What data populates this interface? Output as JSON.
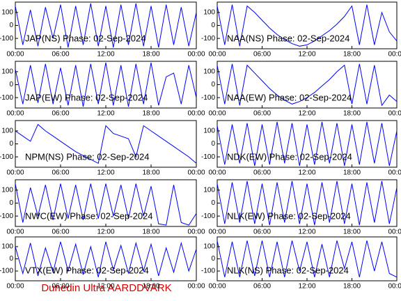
{
  "footer": "Dunedin Ultra AARDDVARK",
  "chart_data": [
    {
      "type": "line",
      "title": "JAP(NS) Phase: 02-Sep-2024",
      "color": "#0000ff",
      "x": [
        0,
        1,
        2,
        3,
        4,
        5,
        6,
        7,
        8,
        9,
        10,
        11,
        12,
        13,
        14,
        15,
        16,
        17,
        18,
        19,
        20,
        21,
        22,
        23,
        24
      ],
      "values": [
        150,
        -150,
        120,
        -160,
        140,
        -100,
        160,
        -170,
        150,
        -150,
        170,
        -160,
        150,
        -170,
        160,
        -150,
        170,
        -160,
        150,
        -170,
        160,
        -150,
        140,
        -160,
        100
      ],
      "xlim": [
        0,
        24
      ],
      "ylim": [
        -180,
        180
      ],
      "yticks": [
        100,
        0,
        -100
      ],
      "xticks": [
        {
          "value": 0,
          "label": "00:00"
        },
        {
          "value": 6,
          "label": "06:00"
        },
        {
          "value": 12,
          "label": "12:00"
        },
        {
          "value": 18,
          "label": "18:00"
        },
        {
          "value": 24,
          "label": "00:00"
        }
      ]
    },
    {
      "type": "line",
      "title": "NAA(NS) Phase: 02-Sep-2024",
      "color": "#0000ff",
      "x": [
        0,
        1,
        2,
        3,
        4,
        5,
        6,
        7,
        8,
        9,
        10,
        11,
        12,
        13,
        14,
        15,
        16,
        17,
        18,
        19,
        20,
        21,
        22,
        23,
        24
      ],
      "values": [
        150,
        -150,
        160,
        -160,
        150,
        100,
        40,
        -20,
        -70,
        -110,
        -140,
        -160,
        -150,
        -120,
        -80,
        -40,
        10,
        70,
        150,
        -150,
        160,
        -150,
        100,
        -50,
        -120
      ],
      "xlim": [
        0,
        24
      ],
      "ylim": [
        -180,
        180
      ],
      "yticks": [
        100,
        0,
        -100
      ],
      "xticks": [
        {
          "value": 0,
          "label": "00:00"
        },
        {
          "value": 6,
          "label": "06:00"
        },
        {
          "value": 12,
          "label": "12:00"
        },
        {
          "value": 18,
          "label": "18:00"
        },
        {
          "value": 24,
          "label": "00:00"
        }
      ]
    },
    {
      "type": "line",
      "title": "JAP(EW) Phase: 02-Sep-2024",
      "color": "#0000ff",
      "x": [
        0,
        1,
        2,
        3,
        4,
        5,
        6,
        7,
        8,
        9,
        10,
        11,
        12,
        13,
        14,
        15,
        16,
        17,
        18,
        19,
        20,
        21,
        22,
        23,
        24
      ],
      "values": [
        120,
        -150,
        150,
        -140,
        160,
        -150,
        130,
        -160,
        150,
        -170,
        160,
        -150,
        170,
        -160,
        150,
        -170,
        160,
        -150,
        170,
        -160,
        60,
        90,
        -150,
        150,
        -100
      ],
      "xlim": [
        0,
        24
      ],
      "ylim": [
        -180,
        180
      ],
      "yticks": [
        100,
        0,
        -100
      ],
      "xticks": [
        {
          "value": 0,
          "label": "00:00"
        },
        {
          "value": 6,
          "label": "06:00"
        },
        {
          "value": 12,
          "label": "12:00"
        },
        {
          "value": 18,
          "label": "18:00"
        },
        {
          "value": 24,
          "label": "00:00"
        }
      ]
    },
    {
      "type": "line",
      "title": "NAA(EW) Phase: 02-Sep-2024",
      "color": "#0000ff",
      "x": [
        0,
        1,
        2,
        3,
        4,
        5,
        6,
        7,
        8,
        9,
        10,
        11,
        12,
        13,
        14,
        15,
        16,
        17,
        18,
        19,
        20,
        21,
        22,
        23,
        24
      ],
      "values": [
        150,
        -150,
        160,
        -160,
        150,
        90,
        30,
        -30,
        -80,
        -120,
        -150,
        -130,
        -100,
        -60,
        -10,
        40,
        100,
        150,
        -150,
        160,
        -150,
        150,
        -160,
        -80,
        -130
      ],
      "xlim": [
        0,
        24
      ],
      "ylim": [
        -180,
        180
      ],
      "yticks": [
        100,
        0,
        -100
      ],
      "xticks": [
        {
          "value": 0,
          "label": "00:00"
        },
        {
          "value": 6,
          "label": "06:00"
        },
        {
          "value": 12,
          "label": "12:00"
        },
        {
          "value": 18,
          "label": "18:00"
        },
        {
          "value": 24,
          "label": "00:00"
        }
      ]
    },
    {
      "type": "line",
      "title": "NPM(NS) Phase: 02-Sep-2024",
      "color": "#0000ff",
      "x": [
        0,
        1,
        2,
        3,
        4,
        5,
        6,
        7,
        8,
        9,
        10,
        11,
        12,
        13,
        14,
        15,
        16,
        17,
        18,
        19,
        20,
        21,
        22,
        23,
        24
      ],
      "values": [
        100,
        60,
        20,
        150,
        100,
        60,
        20,
        -20,
        -60,
        -90,
        -120,
        -150,
        140,
        80,
        60,
        40,
        -100,
        140,
        100,
        60,
        20,
        -20,
        -60,
        -100,
        -150
      ],
      "xlim": [
        0,
        24
      ],
      "ylim": [
        -180,
        180
      ],
      "yticks": [
        100,
        0,
        -100
      ],
      "xticks": [
        {
          "value": 0,
          "label": "00:00"
        },
        {
          "value": 6,
          "label": "06:00"
        },
        {
          "value": 12,
          "label": "12:00"
        },
        {
          "value": 18,
          "label": "18:00"
        },
        {
          "value": 24,
          "label": "00:00"
        }
      ]
    },
    {
      "type": "line",
      "title": "NDK(EW) Phase: 02-Sep-2024",
      "color": "#0000ff",
      "x": [
        0,
        1,
        2,
        3,
        4,
        5,
        6,
        7,
        8,
        9,
        10,
        11,
        12,
        13,
        14,
        15,
        16,
        17,
        18,
        19,
        20,
        21,
        22,
        23,
        24
      ],
      "values": [
        140,
        -160,
        150,
        -150,
        160,
        -170,
        150,
        -160,
        170,
        -150,
        160,
        -170,
        150,
        -160,
        170,
        -150,
        160,
        -170,
        150,
        -160,
        170,
        -150,
        160,
        -170,
        100
      ],
      "xlim": [
        0,
        24
      ],
      "ylim": [
        -180,
        180
      ],
      "yticks": [
        100,
        0,
        -100
      ],
      "xticks": [
        {
          "value": 0,
          "label": "00:00"
        },
        {
          "value": 6,
          "label": "06:00"
        },
        {
          "value": 12,
          "label": "12:00"
        },
        {
          "value": 18,
          "label": "18:00"
        },
        {
          "value": 24,
          "label": "00:00"
        }
      ]
    },
    {
      "type": "line",
      "title": "NWC(EW) Phase: 02-Sep-2024",
      "color": "#0000ff",
      "x": [
        0,
        1,
        2,
        3,
        4,
        5,
        6,
        7,
        8,
        9,
        10,
        11,
        12,
        13,
        14,
        15,
        16,
        17,
        18,
        19,
        20,
        21,
        22,
        23,
        24
      ],
      "values": [
        150,
        -150,
        120,
        -100,
        140,
        -130,
        150,
        -120,
        140,
        -130,
        150,
        -120,
        150,
        -100,
        140,
        -120,
        150,
        -100,
        130,
        -160,
        -170,
        140,
        -150,
        -170,
        -80
      ],
      "xlim": [
        0,
        24
      ],
      "ylim": [
        -180,
        180
      ],
      "yticks": [
        100,
        0,
        -100
      ],
      "xticks": [
        {
          "value": 0,
          "label": "00:00"
        },
        {
          "value": 6,
          "label": "06:00"
        },
        {
          "value": 12,
          "label": "12:00"
        },
        {
          "value": 18,
          "label": "18:00"
        },
        {
          "value": 24,
          "label": "00:00"
        }
      ]
    },
    {
      "type": "line",
      "title": "NLK(EW) Phase: 02-Sep-2024",
      "color": "#0000ff",
      "x": [
        0,
        1,
        2,
        3,
        4,
        5,
        6,
        7,
        8,
        9,
        10,
        11,
        12,
        13,
        14,
        15,
        16,
        17,
        18,
        19,
        20,
        21,
        22,
        23,
        24
      ],
      "values": [
        150,
        -160,
        160,
        -150,
        170,
        -160,
        150,
        -170,
        160,
        -150,
        170,
        -160,
        150,
        -170,
        160,
        -150,
        170,
        -160,
        150,
        -170,
        160,
        -150,
        170,
        -160,
        120
      ],
      "xlim": [
        0,
        24
      ],
      "ylim": [
        -180,
        180
      ],
      "yticks": [
        100,
        0,
        -100
      ],
      "xticks": [
        {
          "value": 0,
          "label": "00:00"
        },
        {
          "value": 6,
          "label": "06:00"
        },
        {
          "value": 12,
          "label": "12:00"
        },
        {
          "value": 18,
          "label": "18:00"
        },
        {
          "value": 24,
          "label": "00:00"
        }
      ]
    },
    {
      "type": "line",
      "title": "VTX(EW) Phase: 02-Sep-2024",
      "color": "#0000ff",
      "x": [
        0,
        1,
        2,
        3,
        4,
        5,
        6,
        7,
        8,
        9,
        10,
        11,
        12,
        13,
        14,
        15,
        16,
        17,
        18,
        19,
        20,
        21,
        22,
        23,
        24
      ],
      "values": [
        100,
        -120,
        130,
        -140,
        90,
        -110,
        140,
        -100,
        120,
        -130,
        100,
        -150,
        140,
        -90,
        110,
        -120,
        130,
        -100,
        120,
        -140,
        90,
        -110,
        130,
        -100,
        80
      ],
      "xlim": [
        0,
        24
      ],
      "ylim": [
        -180,
        180
      ],
      "yticks": [
        100,
        0,
        -100
      ],
      "xticks": [
        {
          "value": 0,
          "label": "00:00"
        },
        {
          "value": 6,
          "label": "06:00"
        },
        {
          "value": 12,
          "label": "12:00"
        },
        {
          "value": 18,
          "label": "18:00"
        },
        {
          "value": 24,
          "label": "00:00"
        }
      ]
    },
    {
      "type": "line",
      "title": "NLK(NS) Phase: 02-Sep-2024",
      "color": "#0000ff",
      "x": [
        0,
        1,
        2,
        3,
        4,
        5,
        6,
        7,
        8,
        9,
        10,
        11,
        12,
        13,
        14,
        15,
        16,
        17,
        18,
        19,
        20,
        21,
        22,
        23,
        24
      ],
      "values": [
        150,
        -150,
        140,
        -150,
        150,
        -140,
        150,
        -150,
        140,
        -150,
        150,
        -100,
        140,
        -150,
        120,
        -150,
        150,
        -80,
        140,
        -150,
        150,
        -100,
        140,
        -120,
        -150
      ],
      "xlim": [
        0,
        24
      ],
      "ylim": [
        -180,
        180
      ],
      "yticks": [
        100,
        0,
        -100
      ],
      "xticks": [
        {
          "value": 0,
          "label": "00:00"
        },
        {
          "value": 6,
          "label": "06:00"
        },
        {
          "value": 12,
          "label": "12:00"
        },
        {
          "value": 18,
          "label": "18:00"
        },
        {
          "value": 24,
          "label": "00:00"
        }
      ]
    }
  ]
}
